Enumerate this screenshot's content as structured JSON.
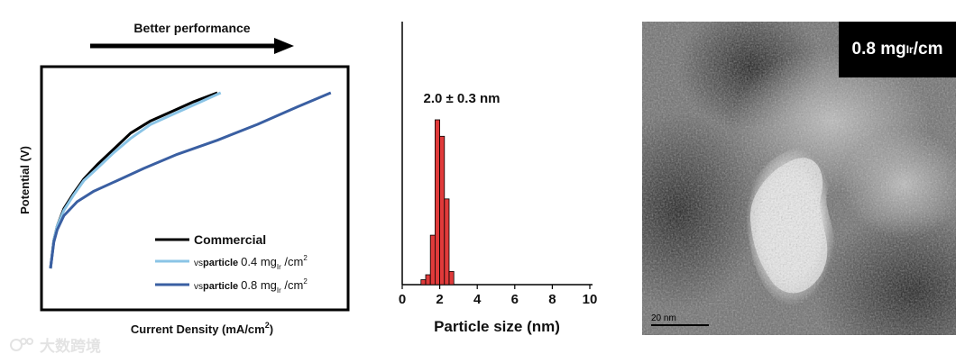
{
  "arrow": {
    "label": "Better performance"
  },
  "chart_data": [
    {
      "type": "line",
      "xlabel": "Current Density (mA/cm²)",
      "ylabel": "Potential (V)",
      "grid": false,
      "legend_placement": "bottom-right",
      "series": [
        {
          "name": "Commercial",
          "color": "#000000",
          "x": [
            0,
            1,
            2,
            4,
            7,
            10,
            14,
            19,
            24,
            30,
            36,
            43,
            50
          ],
          "y": [
            0,
            0.16,
            0.24,
            0.34,
            0.43,
            0.51,
            0.59,
            0.68,
            0.77,
            0.84,
            0.89,
            0.95,
            1.0
          ]
        },
        {
          "name": "vsparticle 0.4 mg_Ir /cm²",
          "color": "#8ac4e6",
          "x": [
            0,
            1,
            2,
            4,
            7,
            10,
            14,
            19,
            24,
            30,
            37,
            44,
            51
          ],
          "y": [
            0,
            0.16,
            0.24,
            0.33,
            0.42,
            0.5,
            0.57,
            0.66,
            0.74,
            0.82,
            0.88,
            0.94,
            1.0
          ]
        },
        {
          "name": "vsparticle 0.8 mg_Ir /cm²",
          "color": "#3a5fa2",
          "x": [
            0,
            1,
            2,
            4,
            8,
            13,
            20,
            28,
            38,
            50,
            62,
            74,
            84
          ],
          "y": [
            0,
            0.15,
            0.22,
            0.3,
            0.38,
            0.44,
            0.5,
            0.57,
            0.65,
            0.73,
            0.82,
            0.92,
            1.0
          ]
        }
      ],
      "legend": {
        "commercial": "Commercial",
        "low_prefix": "vs",
        "low_brand": "particle",
        "low_loading": "0.4 mg",
        "low_sub": "Ir",
        "low_unit": " /cm",
        "low_sup": "2",
        "high_prefix": "vs",
        "high_brand": "particle",
        "high_loading": "0.8 mg",
        "high_sub": "Ir",
        "high_unit": " /cm",
        "high_sup": "2"
      },
      "xlabel_main": "Current Density (mA/cm",
      "xlabel_sup": "2",
      "xlabel_end": ")"
    },
    {
      "type": "bar",
      "xlabel": "Particle size (nm)",
      "annotation": "2.0 ± 0.3 nm",
      "xlim": [
        0,
        10
      ],
      "xticks": [
        "0",
        "2",
        "4",
        "6",
        "8",
        "10"
      ],
      "bar_color": "#e03a3a",
      "bin_width": 0.25,
      "bins_left": [
        1.0,
        1.25,
        1.5,
        1.75,
        2.0,
        2.25,
        2.5
      ],
      "values": [
        3,
        6,
        30,
        100,
        90,
        52,
        8
      ],
      "ylim": [
        0,
        110
      ]
    }
  ],
  "image": {
    "badge_main": "0.8 mg",
    "badge_sub": "Ir",
    "badge_unit": "/cm",
    "scale_label": "20 nm"
  },
  "watermark": {
    "text": "大数跨境"
  }
}
